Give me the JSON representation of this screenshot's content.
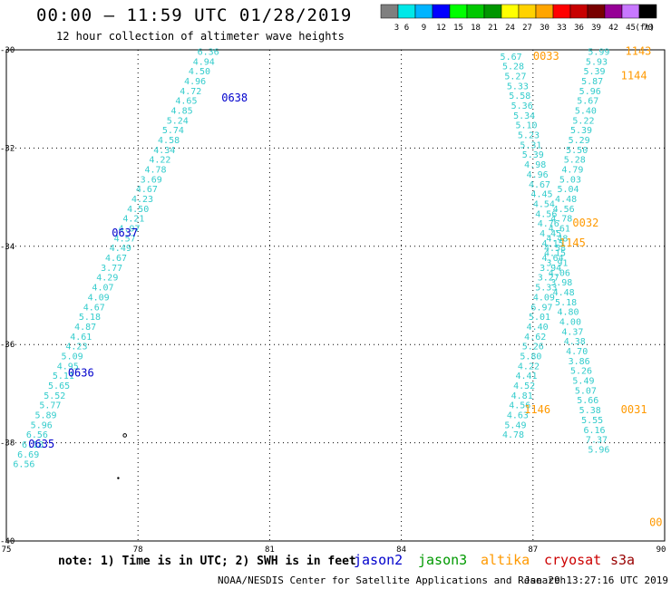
{
  "header": {
    "title": "00:00 — 11:59 UTC 01/28/2019",
    "subtitle": "12 hour collection of altimeter wave heights"
  },
  "colorbar": {
    "ticks": [
      "3",
      "6",
      "9",
      "12",
      "15",
      "18",
      "21",
      "24",
      "27",
      "30",
      "33",
      "36",
      "39",
      "42",
      "45",
      "70"
    ],
    "unit": "(ft)",
    "colors": [
      "#7f7f7f",
      "#00e8e8",
      "#00b4ff",
      "#0000ff",
      "#00ff00",
      "#00c800",
      "#009600",
      "#ffff00",
      "#ffd200",
      "#ffa500",
      "#ff0000",
      "#c80000",
      "#780000",
      "#960096",
      "#c878ff",
      "#000000"
    ]
  },
  "axes": {
    "xticks": [
      "75",
      "78",
      "81",
      "84",
      "87",
      "90"
    ],
    "yticks": [
      "-30",
      "-32",
      "-34",
      "-36",
      "-38",
      "-40"
    ]
  },
  "footer": {
    "note": "note: 1) Time is in UTC; 2) SWH is in feet",
    "satellites": [
      {
        "name": "jason2",
        "color": "#0000cc"
      },
      {
        "name": "jason3",
        "color": "#009900"
      },
      {
        "name": "altika",
        "color": "#ff9900"
      },
      {
        "name": "cryosat",
        "color": "#cc0000"
      },
      {
        "name": "s3a",
        "color": "#990000"
      }
    ],
    "credit": "NOAA/NESDIS Center for Satellite Applications and Research",
    "timestamp": "Jan 29 13:27:16 UTC 2019"
  },
  "map_data": {
    "lon_range": [
      75,
      90
    ],
    "lat_range": [
      -40,
      -30
    ],
    "value_color": "#33cccc",
    "tracks": [
      {
        "satellite": "jason2",
        "time_labels": [
          {
            "text": "0638",
            "lon": 80.2,
            "lat": -31.05
          },
          {
            "text": "0637",
            "lon": 77.7,
            "lat": -33.8
          },
          {
            "text": "0636",
            "lon": 76.7,
            "lat": -36.65
          },
          {
            "text": "0635",
            "lon": 75.8,
            "lat": -38.1
          }
        ],
        "values": [
          {
            "v": "6.36",
            "lon": 79.6,
            "lat": -30.1
          },
          {
            "v": "4.94",
            "lon": 79.5,
            "lat": -30.3
          },
          {
            "v": "4.50",
            "lon": 79.4,
            "lat": -30.5
          },
          {
            "v": "4.96",
            "lon": 79.3,
            "lat": -30.7
          },
          {
            "v": "4.72",
            "lon": 79.2,
            "lat": -30.9
          },
          {
            "v": "4.65",
            "lon": 79.1,
            "lat": -31.1
          },
          {
            "v": "4.85",
            "lon": 79.0,
            "lat": -31.3
          },
          {
            "v": "5.24",
            "lon": 78.9,
            "lat": -31.5
          },
          {
            "v": "5.74",
            "lon": 78.8,
            "lat": -31.7
          },
          {
            "v": "4.58",
            "lon": 78.7,
            "lat": -31.9
          },
          {
            "v": "4.34",
            "lon": 78.6,
            "lat": -32.1
          },
          {
            "v": "4.22",
            "lon": 78.5,
            "lat": -32.3
          },
          {
            "v": "4.78",
            "lon": 78.4,
            "lat": -32.5
          },
          {
            "v": "3.69",
            "lon": 78.3,
            "lat": -32.7
          },
          {
            "v": "4.67",
            "lon": 78.2,
            "lat": -32.9
          },
          {
            "v": "4.23",
            "lon": 78.1,
            "lat": -33.1
          },
          {
            "v": "4.50",
            "lon": 78.0,
            "lat": -33.3
          },
          {
            "v": "4.21",
            "lon": 77.9,
            "lat": -33.5
          },
          {
            "v": "4.97",
            "lon": 77.8,
            "lat": -33.7
          },
          {
            "v": "4.57",
            "lon": 77.7,
            "lat": -33.9
          },
          {
            "v": "4.49",
            "lon": 77.6,
            "lat": -34.1
          },
          {
            "v": "4.67",
            "lon": 77.5,
            "lat": -34.3
          },
          {
            "v": "3.77",
            "lon": 77.4,
            "lat": -34.5
          },
          {
            "v": "4.29",
            "lon": 77.3,
            "lat": -34.7
          },
          {
            "v": "4.07",
            "lon": 77.2,
            "lat": -34.9
          },
          {
            "v": "4.09",
            "lon": 77.1,
            "lat": -35.1
          },
          {
            "v": "4.67",
            "lon": 77.0,
            "lat": -35.3
          },
          {
            "v": "5.18",
            "lon": 76.9,
            "lat": -35.5
          },
          {
            "v": "4.87",
            "lon": 76.8,
            "lat": -35.7
          },
          {
            "v": "4.61",
            "lon": 76.7,
            "lat": -35.9
          },
          {
            "v": "4.23",
            "lon": 76.6,
            "lat": -36.1
          },
          {
            "v": "5.09",
            "lon": 76.5,
            "lat": -36.3
          },
          {
            "v": "4.95",
            "lon": 76.4,
            "lat": -36.5
          },
          {
            "v": "5.11",
            "lon": 76.3,
            "lat": -36.7
          },
          {
            "v": "5.65",
            "lon": 76.2,
            "lat": -36.9
          },
          {
            "v": "5.52",
            "lon": 76.1,
            "lat": -37.1
          },
          {
            "v": "5.77",
            "lon": 76.0,
            "lat": -37.3
          },
          {
            "v": "5.89",
            "lon": 75.9,
            "lat": -37.5
          },
          {
            "v": "5.96",
            "lon": 75.8,
            "lat": -37.7
          },
          {
            "v": "6.56",
            "lon": 75.7,
            "lat": -37.9
          },
          {
            "v": "6.18",
            "lon": 75.6,
            "lat": -38.1
          },
          {
            "v": "6.69",
            "lon": 75.5,
            "lat": -38.3
          },
          {
            "v": "6.56",
            "lon": 75.4,
            "lat": -38.5
          }
        ]
      },
      {
        "satellite": "altika",
        "time_labels": [
          {
            "text": "0033",
            "lon": 87.3,
            "lat": -30.2
          },
          {
            "text": "0032",
            "lon": 88.2,
            "lat": -33.6
          },
          {
            "text": "0031",
            "lon": 89.3,
            "lat": -37.4
          }
        ],
        "values": [
          {
            "v": "5.67",
            "lon": 86.5,
            "lat": -30.2
          },
          {
            "v": "5.28",
            "lon": 86.55,
            "lat": -30.4
          },
          {
            "v": "5.27",
            "lon": 86.6,
            "lat": -30.6
          },
          {
            "v": "5.33",
            "lon": 86.65,
            "lat": -30.8
          },
          {
            "v": "5.58",
            "lon": 86.7,
            "lat": -31.0
          },
          {
            "v": "5.36",
            "lon": 86.75,
            "lat": -31.2
          },
          {
            "v": "5.34",
            "lon": 86.8,
            "lat": -31.4
          },
          {
            "v": "5.10",
            "lon": 86.85,
            "lat": -31.6
          },
          {
            "v": "5.23",
            "lon": 86.9,
            "lat": -31.8
          },
          {
            "v": "5.31",
            "lon": 86.95,
            "lat": -32.0
          },
          {
            "v": "5.39",
            "lon": 87.0,
            "lat": -32.2
          },
          {
            "v": "4.98",
            "lon": 87.05,
            "lat": -32.4
          },
          {
            "v": "4.96",
            "lon": 87.1,
            "lat": -32.6
          },
          {
            "v": "4.67",
            "lon": 87.15,
            "lat": -32.8
          },
          {
            "v": "4.45",
            "lon": 87.2,
            "lat": -33.0
          },
          {
            "v": "4.54",
            "lon": 87.25,
            "lat": -33.2
          },
          {
            "v": "4.56",
            "lon": 87.3,
            "lat": -33.4
          },
          {
            "v": "4.76",
            "lon": 87.35,
            "lat": -33.6
          },
          {
            "v": "4.45",
            "lon": 87.4,
            "lat": -33.8
          },
          {
            "v": "4.15",
            "lon": 87.45,
            "lat": -34.0
          },
          {
            "v": "4.15",
            "lon": 87.5,
            "lat": -34.2
          },
          {
            "v": "3.91",
            "lon": 87.55,
            "lat": -34.4
          },
          {
            "v": "4.06",
            "lon": 87.6,
            "lat": -34.6
          },
          {
            "v": "3.98",
            "lon": 87.65,
            "lat": -34.8
          },
          {
            "v": "4.48",
            "lon": 87.7,
            "lat": -35.0
          },
          {
            "v": "5.18",
            "lon": 87.75,
            "lat": -35.2
          },
          {
            "v": "4.80",
            "lon": 87.8,
            "lat": -35.4
          },
          {
            "v": "4.00",
            "lon": 87.85,
            "lat": -35.6
          },
          {
            "v": "4.37",
            "lon": 87.9,
            "lat": -35.8
          },
          {
            "v": "4.38",
            "lon": 87.95,
            "lat": -36.0
          },
          {
            "v": "4.70",
            "lon": 88.0,
            "lat": -36.2
          },
          {
            "v": "3.86",
            "lon": 88.05,
            "lat": -36.4
          },
          {
            "v": "5.26",
            "lon": 88.1,
            "lat": -36.6
          },
          {
            "v": "5.49",
            "lon": 88.15,
            "lat": -36.8
          },
          {
            "v": "5.07",
            "lon": 88.2,
            "lat": -37.0
          },
          {
            "v": "5.66",
            "lon": 88.25,
            "lat": -37.2
          },
          {
            "v": "5.38",
            "lon": 88.3,
            "lat": -37.4
          },
          {
            "v": "5.55",
            "lon": 88.35,
            "lat": -37.6
          },
          {
            "v": "6.16",
            "lon": 88.4,
            "lat": -37.8
          },
          {
            "v": "7.37",
            "lon": 88.45,
            "lat": -38.0
          },
          {
            "v": "5.96",
            "lon": 88.5,
            "lat": -38.2
          }
        ]
      },
      {
        "satellite": "altika",
        "time_labels": [
          {
            "text": "1143",
            "lon": 89.4,
            "lat": -30.1
          },
          {
            "text": "1144",
            "lon": 89.3,
            "lat": -30.6
          },
          {
            "text": "1145",
            "lon": 87.9,
            "lat": -34.0
          },
          {
            "text": "1146",
            "lon": 87.1,
            "lat": -37.4
          },
          {
            "text": "00",
            "lon": 89.8,
            "lat": -39.7
          }
        ],
        "values": [
          {
            "v": "5.99",
            "lon": 88.5,
            "lat": -30.1
          },
          {
            "v": "5.93",
            "lon": 88.45,
            "lat": -30.3
          },
          {
            "v": "5.39",
            "lon": 88.4,
            "lat": -30.5
          },
          {
            "v": "5.87",
            "lon": 88.35,
            "lat": -30.7
          },
          {
            "v": "5.96",
            "lon": 88.3,
            "lat": -30.9
          },
          {
            "v": "5.67",
            "lon": 88.25,
            "lat": -31.1
          },
          {
            "v": "5.40",
            "lon": 88.2,
            "lat": -31.3
          },
          {
            "v": "5.22",
            "lon": 88.15,
            "lat": -31.5
          },
          {
            "v": "5.39",
            "lon": 88.1,
            "lat": -31.7
          },
          {
            "v": "5.29",
            "lon": 88.05,
            "lat": -31.9
          },
          {
            "v": "5.50",
            "lon": 88.0,
            "lat": -32.1
          },
          {
            "v": "5.28",
            "lon": 87.95,
            "lat": -32.3
          },
          {
            "v": "4.79",
            "lon": 87.9,
            "lat": -32.5
          },
          {
            "v": "5.03",
            "lon": 87.85,
            "lat": -32.7
          },
          {
            "v": "5.04",
            "lon": 87.8,
            "lat": -32.9
          },
          {
            "v": "4.48",
            "lon": 87.75,
            "lat": -33.1
          },
          {
            "v": "4.56",
            "lon": 87.7,
            "lat": -33.3
          },
          {
            "v": "4.78",
            "lon": 87.65,
            "lat": -33.5
          },
          {
            "v": "4.61",
            "lon": 87.6,
            "lat": -33.7
          },
          {
            "v": "4.48",
            "lon": 87.55,
            "lat": -33.9
          },
          {
            "v": "4.58",
            "lon": 87.5,
            "lat": -34.1
          },
          {
            "v": "4.64",
            "lon": 87.45,
            "lat": -34.3
          },
          {
            "v": "3.94",
            "lon": 87.4,
            "lat": -34.5
          },
          {
            "v": "3.27",
            "lon": 87.35,
            "lat": -34.7
          },
          {
            "v": "5.33",
            "lon": 87.3,
            "lat": -34.9
          },
          {
            "v": "4.09",
            "lon": 87.25,
            "lat": -35.1
          },
          {
            "v": "6.97",
            "lon": 87.2,
            "lat": -35.3
          },
          {
            "v": "5.01",
            "lon": 87.15,
            "lat": -35.5
          },
          {
            "v": "4.40",
            "lon": 87.1,
            "lat": -35.7
          },
          {
            "v": "4.62",
            "lon": 87.05,
            "lat": -35.9
          },
          {
            "v": "5.26",
            "lon": 87.0,
            "lat": -36.1
          },
          {
            "v": "5.80",
            "lon": 86.95,
            "lat": -36.3
          },
          {
            "v": "4.22",
            "lon": 86.9,
            "lat": -36.5
          },
          {
            "v": "4.41",
            "lon": 86.85,
            "lat": -36.7
          },
          {
            "v": "4.52",
            "lon": 86.8,
            "lat": -36.9
          },
          {
            "v": "4.81",
            "lon": 86.75,
            "lat": -37.1
          },
          {
            "v": "4.56",
            "lon": 86.7,
            "lat": -37.3
          },
          {
            "v": "4.63",
            "lon": 86.65,
            "lat": -37.5
          },
          {
            "v": "5.49",
            "lon": 86.6,
            "lat": -37.7
          },
          {
            "v": "4.78",
            "lon": 86.55,
            "lat": -37.9
          }
        ]
      }
    ]
  }
}
